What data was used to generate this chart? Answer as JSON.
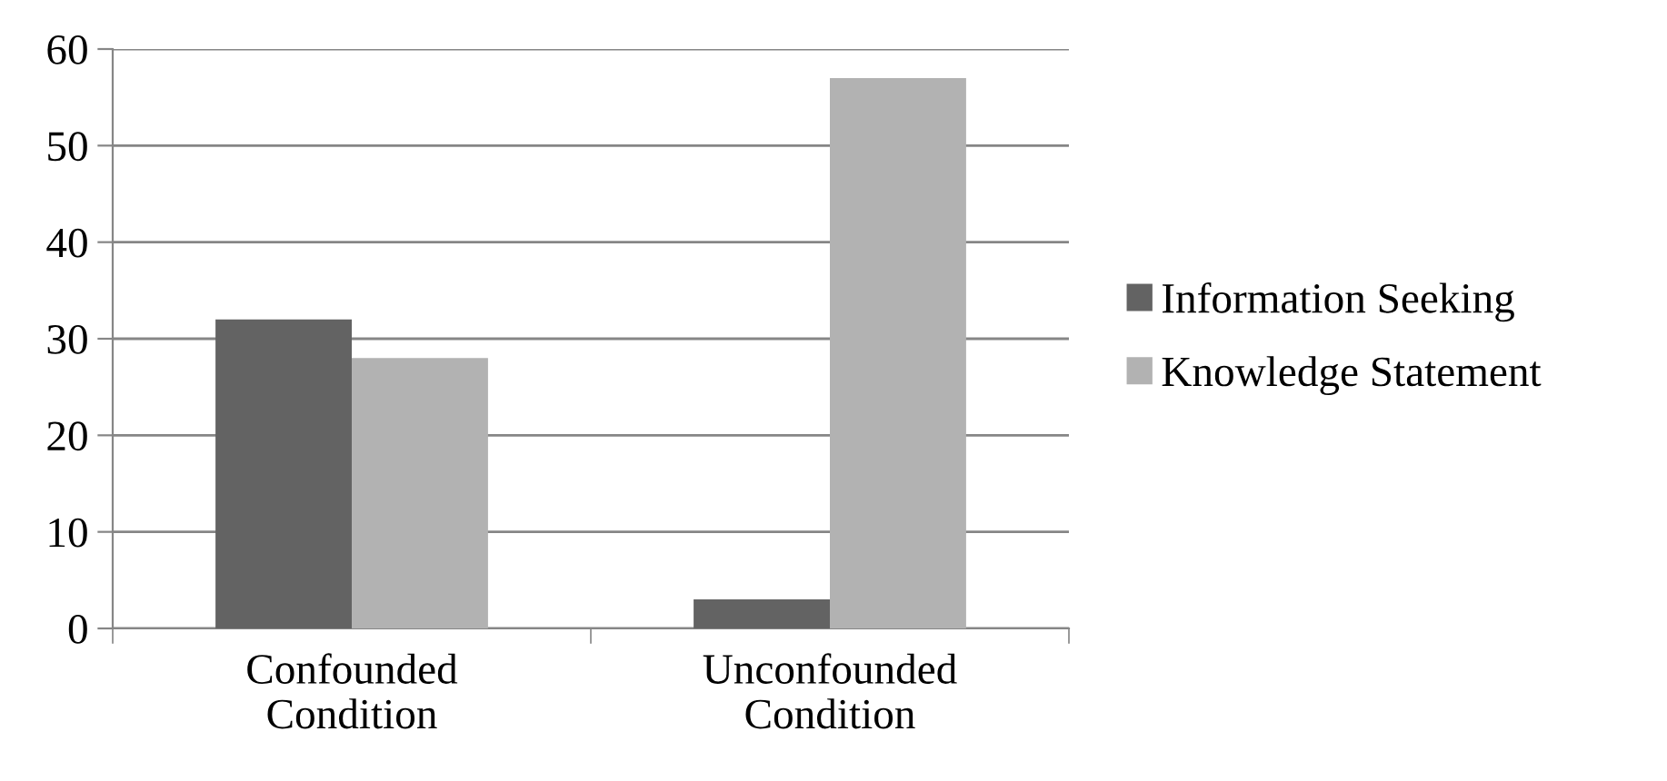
{
  "chart_data": {
    "type": "bar",
    "categories": [
      "Confounded Condition",
      "Unconfounded Condition"
    ],
    "series": [
      {
        "name": "Information Seeking",
        "color": "#636363",
        "values": [
          32,
          3
        ]
      },
      {
        "name": "Knowledge Statement",
        "color": "#b2b2b2",
        "values": [
          28,
          57
        ]
      }
    ],
    "ylim": [
      0,
      60
    ],
    "yticks": [
      0,
      10,
      20,
      30,
      40,
      50,
      60
    ],
    "grid": "y",
    "legend": "right"
  }
}
